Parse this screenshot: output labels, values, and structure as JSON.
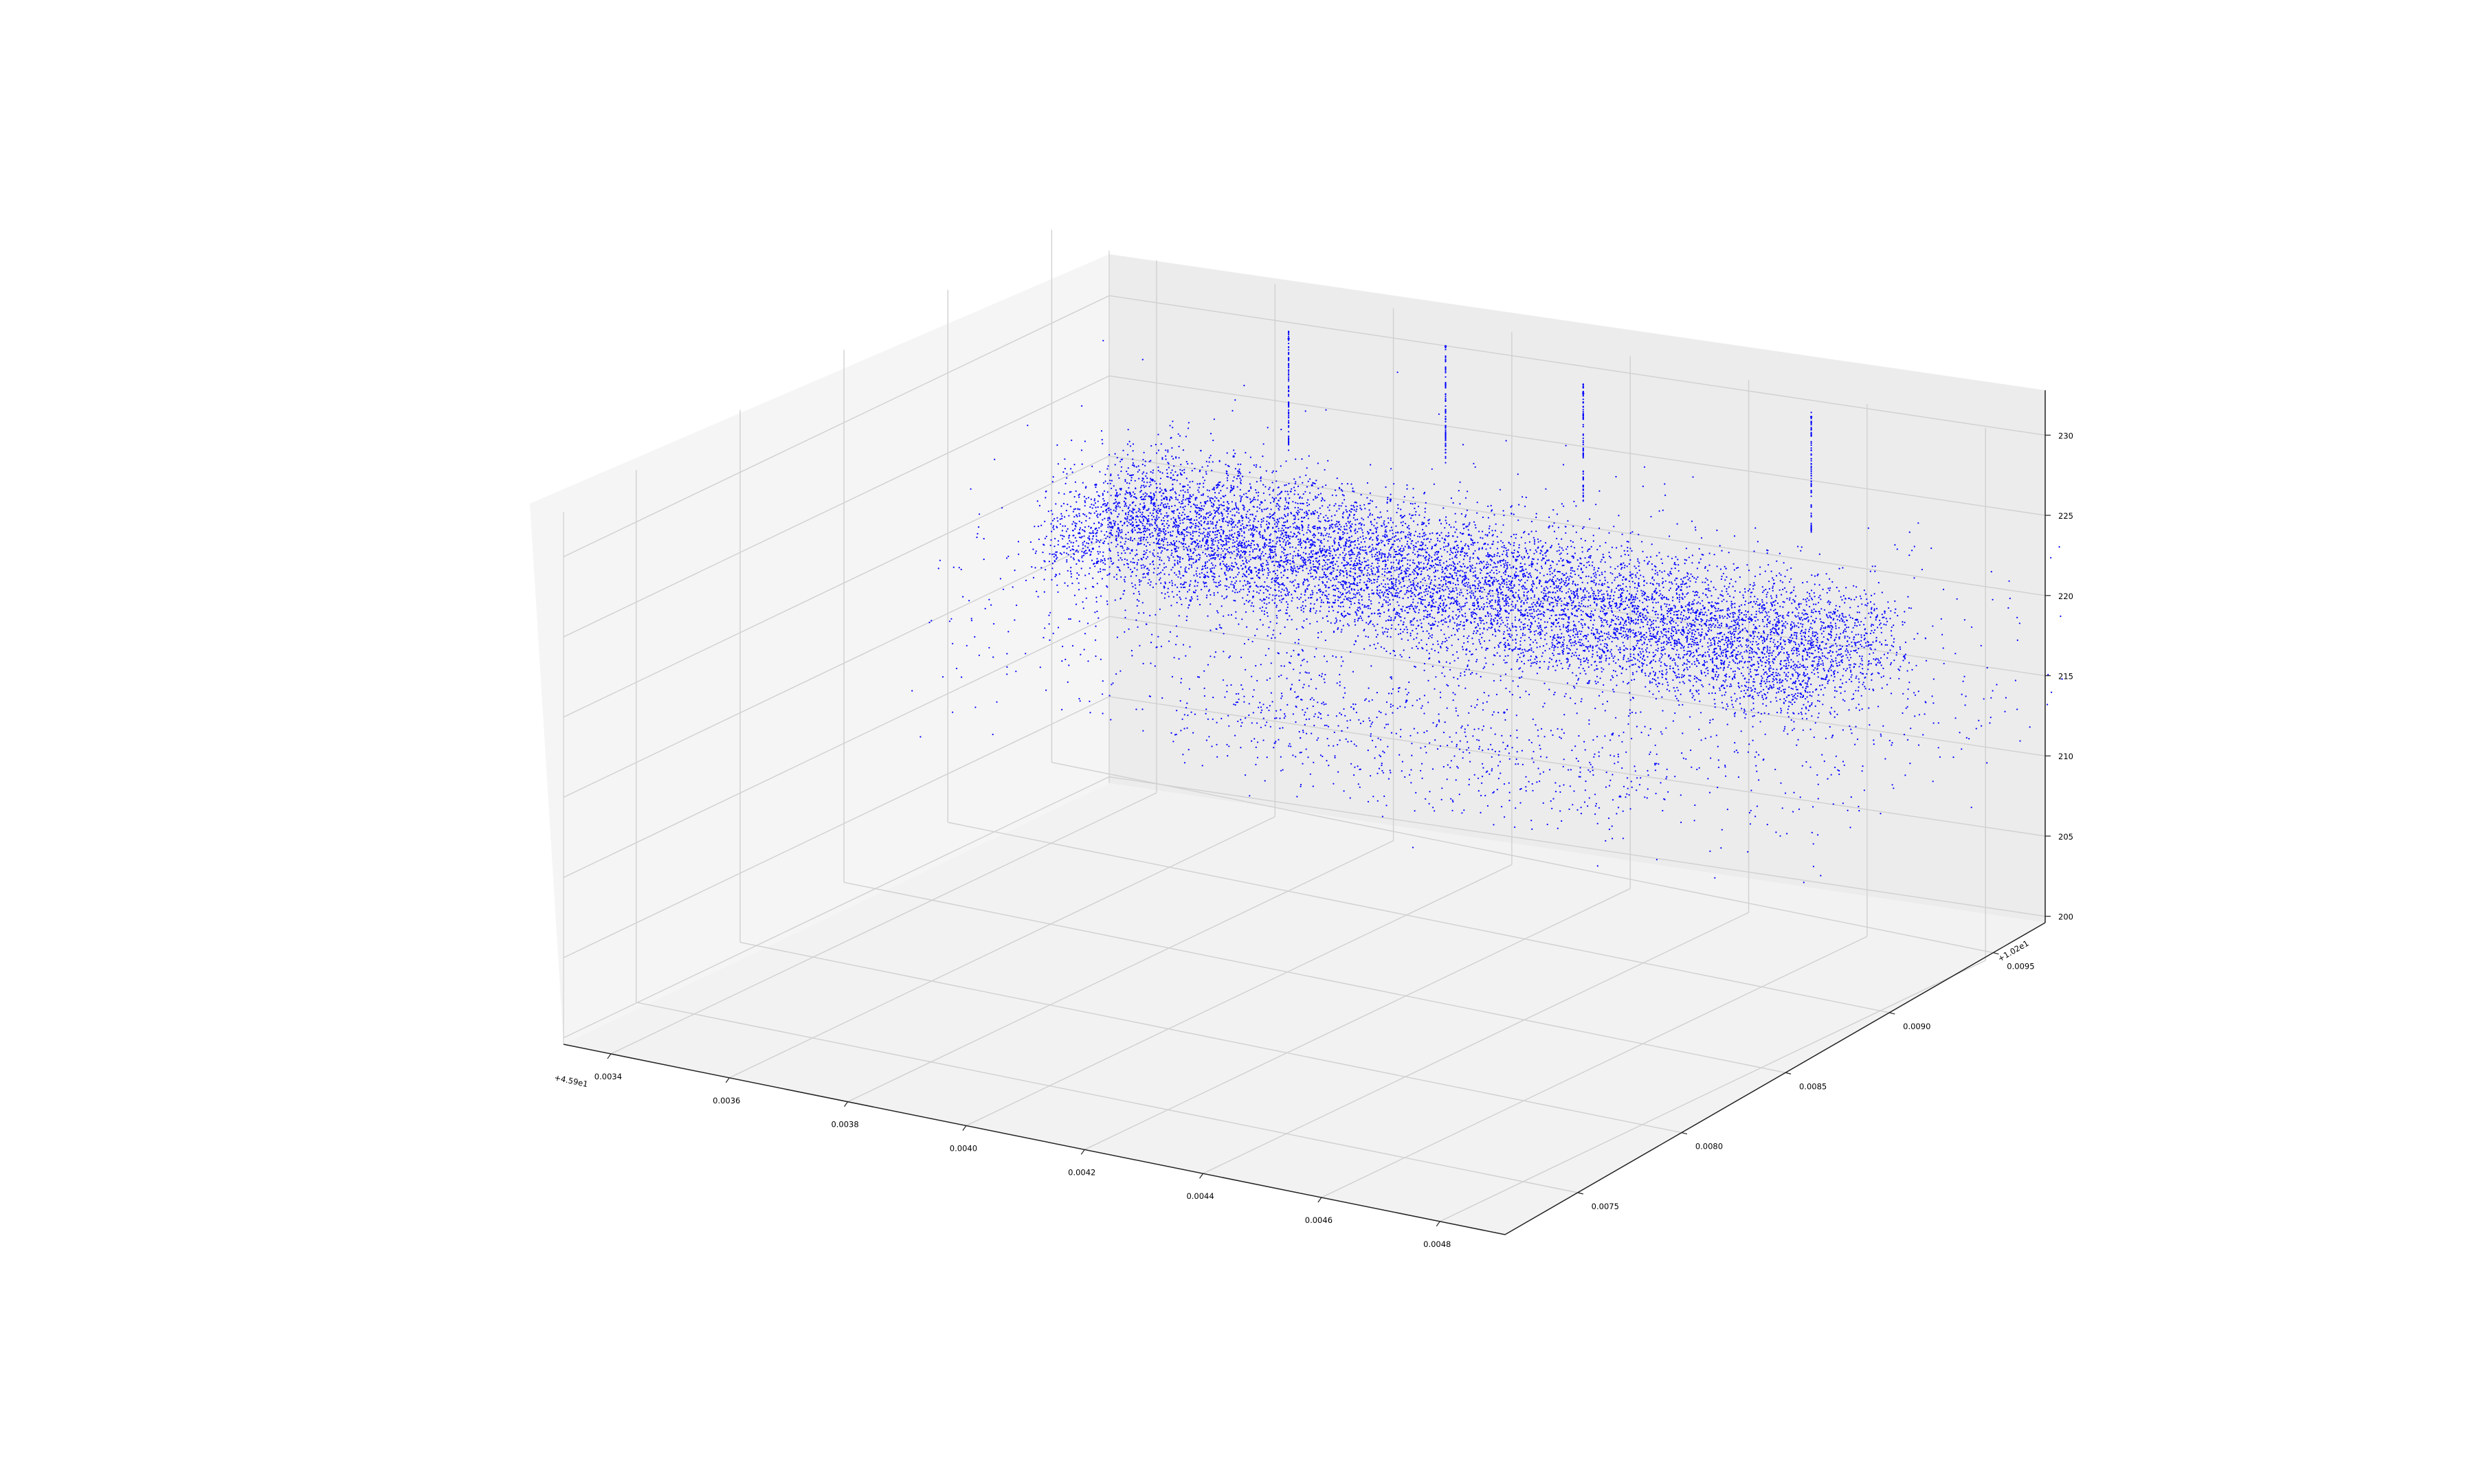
{
  "chart_data": {
    "type": "scatter",
    "projection": "3d",
    "title": "",
    "xlabel": "",
    "ylabel": "",
    "zlabel": "",
    "grid": true,
    "marker_color": "#0000ff",
    "pane_colors": {
      "floor": "#f2f2f2",
      "left_wall": "#f5f5f5",
      "back_wall": "#ececec"
    },
    "x_axis": {
      "offset_text": "+4.59e1",
      "ticks": [
        0.0034,
        0.0036,
        0.0038,
        0.004,
        0.0042,
        0.0044,
        0.0046,
        0.0048
      ],
      "tick_labels": [
        "0.0034",
        "0.0036",
        "0.0038",
        "0.0040",
        "0.0042",
        "0.0044",
        "0.0046",
        "0.0048"
      ]
    },
    "y_axis": {
      "offset_text": "+1.02e1",
      "ticks": [
        0.0075,
        0.008,
        0.0085,
        0.009,
        0.0095
      ],
      "tick_labels": [
        "0.0075",
        "0.0080",
        "0.0085",
        "0.0090",
        "0.0095"
      ]
    },
    "z_axis": {
      "ticks": [
        200,
        205,
        210,
        215,
        220,
        225,
        230
      ],
      "tick_labels": [
        "200",
        "205",
        "210",
        "215",
        "220",
        "225",
        "230"
      ]
    },
    "series": [
      {
        "points": [
          [
            0.0037,
            0.00905,
            223.0
          ],
          [
            0.00385,
            0.009,
            223.5
          ],
          [
            0.004,
            0.00895,
            222.8
          ],
          [
            0.00415,
            0.0089,
            223.2
          ],
          [
            0.0043,
            0.00885,
            222.5
          ],
          [
            0.00445,
            0.0088,
            223.0
          ],
          [
            0.0046,
            0.00875,
            222.6
          ],
          [
            0.00475,
            0.0087,
            222.9
          ],
          [
            0.00365,
            0.0091,
            221.5
          ],
          [
            0.0038,
            0.00905,
            221.8
          ],
          [
            0.00395,
            0.009,
            221.2
          ],
          [
            0.0041,
            0.00895,
            221.6
          ],
          [
            0.00425,
            0.0089,
            221.0
          ],
          [
            0.0044,
            0.00885,
            221.4
          ],
          [
            0.00455,
            0.0088,
            221.1
          ],
          [
            0.0047,
            0.00875,
            221.3
          ],
          [
            0.00375,
            0.00915,
            224.5
          ],
          [
            0.0039,
            0.0091,
            224.2
          ],
          [
            0.00405,
            0.00905,
            224.8
          ],
          [
            0.0042,
            0.009,
            224.1
          ],
          [
            0.00435,
            0.00895,
            224.6
          ],
          [
            0.0045,
            0.0089,
            224.3
          ],
          [
            0.00465,
            0.00885,
            224.0
          ],
          [
            0.0048,
            0.0088,
            224.4
          ],
          [
            0.00372,
            0.0095,
            229.0
          ],
          [
            0.00395,
            0.0096,
            229.5
          ],
          [
            0.0042,
            0.00955,
            228.8
          ],
          [
            0.00455,
            0.00965,
            229.2
          ],
          [
            0.0036,
            0.0089,
            219.5
          ],
          [
            0.0038,
            0.0088,
            218.5
          ],
          [
            0.004,
            0.00875,
            217.0
          ],
          [
            0.0042,
            0.0087,
            216.0
          ],
          [
            0.0044,
            0.0086,
            217.5
          ],
          [
            0.0046,
            0.00855,
            218.0
          ],
          [
            0.0035,
            0.0092,
            220.5
          ],
          [
            0.0049,
            0.0086,
            223.0
          ]
        ]
      }
    ]
  }
}
